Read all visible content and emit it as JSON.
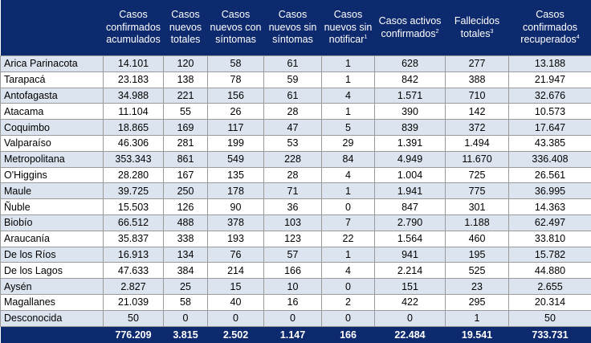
{
  "headers": [
    {
      "label": "",
      "sup": ""
    },
    {
      "label": "Casos confirmados acumulados",
      "sup": ""
    },
    {
      "label": "Casos nuevos totales",
      "sup": ""
    },
    {
      "label": "Casos nuevos con síntomas",
      "sup": ""
    },
    {
      "label": "Casos nuevos sin síntomas",
      "sup": ""
    },
    {
      "label": "Casos nuevos sin notificar",
      "sup": "1"
    },
    {
      "label": "Casos activos confirmados",
      "sup": "2"
    },
    {
      "label": "Fallecidos totales",
      "sup": "3"
    },
    {
      "label": "Casos confirmados recuperados",
      "sup": "4"
    }
  ],
  "rows": [
    [
      "Arica Parinacota",
      "14.101",
      "120",
      "58",
      "61",
      "1",
      "628",
      "277",
      "13.188"
    ],
    [
      "Tarapacá",
      "23.183",
      "138",
      "78",
      "59",
      "1",
      "842",
      "388",
      "21.947"
    ],
    [
      "Antofagasta",
      "34.988",
      "221",
      "156",
      "61",
      "4",
      "1.571",
      "710",
      "32.676"
    ],
    [
      "Atacama",
      "11.104",
      "55",
      "26",
      "28",
      "1",
      "390",
      "142",
      "10.573"
    ],
    [
      "Coquimbo",
      "18.865",
      "169",
      "117",
      "47",
      "5",
      "839",
      "372",
      "17.647"
    ],
    [
      "Valparaíso",
      "46.306",
      "281",
      "199",
      "53",
      "29",
      "1.391",
      "1.494",
      "43.385"
    ],
    [
      "Metropolitana",
      "353.343",
      "861",
      "549",
      "228",
      "84",
      "4.949",
      "11.670",
      "336.408"
    ],
    [
      "O'Higgins",
      "28.280",
      "167",
      "135",
      "28",
      "4",
      "1.004",
      "725",
      "26.561"
    ],
    [
      "Maule",
      "39.725",
      "250",
      "178",
      "71",
      "1",
      "1.941",
      "775",
      "36.995"
    ],
    [
      "Ñuble",
      "15.503",
      "126",
      "90",
      "36",
      "0",
      "847",
      "301",
      "14.363"
    ],
    [
      "Biobío",
      "66.512",
      "488",
      "378",
      "103",
      "7",
      "2.790",
      "1.188",
      "62.497"
    ],
    [
      "Araucanía",
      "35.837",
      "338",
      "193",
      "123",
      "22",
      "1.564",
      "460",
      "33.810"
    ],
    [
      "De los Ríos",
      "16.913",
      "134",
      "76",
      "57",
      "1",
      "941",
      "195",
      "15.782"
    ],
    [
      "De los Lagos",
      "47.633",
      "384",
      "214",
      "166",
      "4",
      "2.214",
      "525",
      "44.880"
    ],
    [
      "Aysén",
      "2.827",
      "25",
      "15",
      "10",
      "0",
      "151",
      "23",
      "2.655"
    ],
    [
      "Magallanes",
      "21.039",
      "58",
      "40",
      "16",
      "2",
      "422",
      "295",
      "20.314"
    ],
    [
      "Desconocida",
      "50",
      "0",
      "0",
      "0",
      "0",
      "0",
      "1",
      "50"
    ]
  ],
  "totals": [
    "",
    "776.209",
    "3.815",
    "2.502",
    "1.147",
    "166",
    "22.484",
    "19.541",
    "733.731"
  ]
}
